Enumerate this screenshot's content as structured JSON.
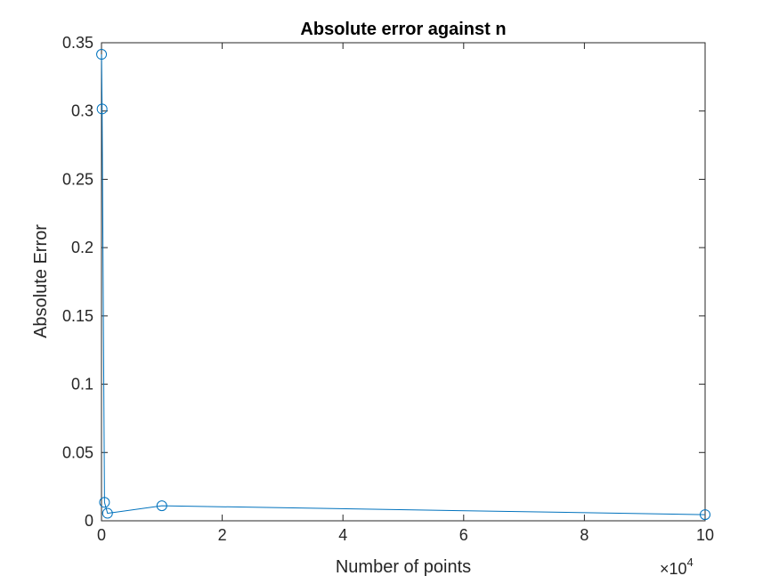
{
  "chart_data": {
    "type": "line",
    "title": "Absolute error against n",
    "xlabel": "Number of points",
    "ylabel": "Absolute Error",
    "x_exponent": {
      "base_text": "×10",
      "power": "4"
    },
    "xlim": [
      0,
      10
    ],
    "ylim": [
      0,
      0.35
    ],
    "x_ticks": [
      0,
      2,
      4,
      6,
      8,
      10
    ],
    "y_ticks": [
      0,
      0.05,
      0.1,
      0.15,
      0.2,
      0.25,
      0.3,
      0.35
    ],
    "x_tick_labels": [
      "0",
      "2",
      "4",
      "6",
      "8",
      "10"
    ],
    "y_tick_labels": [
      "0",
      "0.05",
      "0.1",
      "0.15",
      "0.2",
      "0.25",
      "0.3",
      "0.35"
    ],
    "grid": false,
    "marker": "circle",
    "series": [
      {
        "color": "#0072BD",
        "x": [
          0.001,
          0.01,
          0.05,
          0.1,
          1,
          10
        ],
        "y": [
          0.3415,
          0.3015,
          0.0135,
          0.0055,
          0.011,
          0.0045
        ]
      }
    ]
  }
}
